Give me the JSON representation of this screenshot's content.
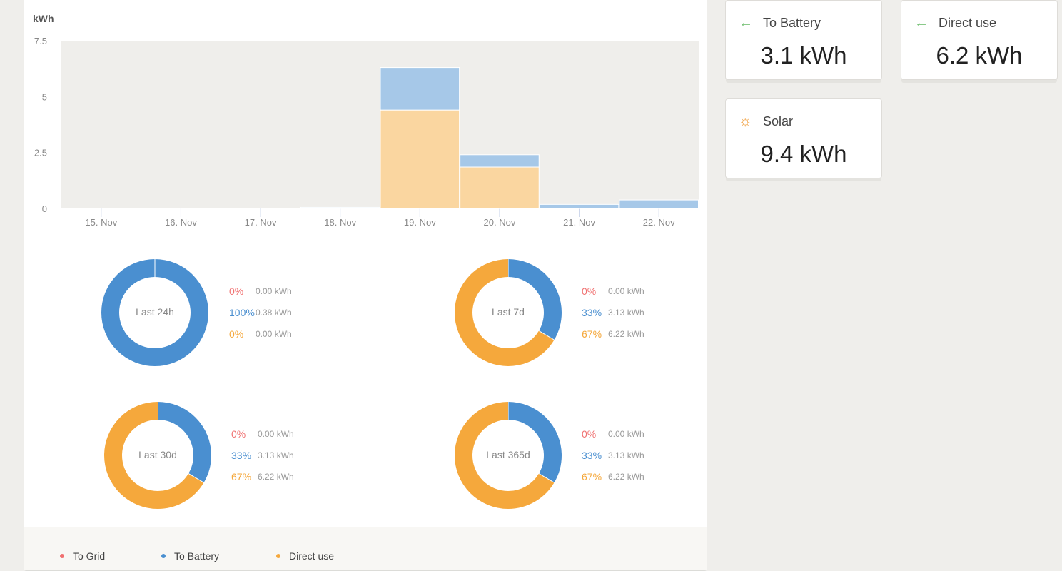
{
  "chart_data": {
    "type": "bar",
    "stacked": true,
    "ylabel": "kWh",
    "ylim": [
      0,
      7.5
    ],
    "yticks": [
      "0",
      "2.5",
      "5",
      "7.5"
    ],
    "ytick_values": [
      0,
      2.5,
      5,
      7.5
    ],
    "categories": [
      "15. Nov",
      "16. Nov",
      "17. Nov",
      "18. Nov",
      "19. Nov",
      "20. Nov",
      "21. Nov",
      "22. Nov"
    ],
    "series": [
      {
        "name": "Direct use",
        "color": "#fad6a0",
        "values": [
          0,
          0,
          0,
          0,
          4.4,
          1.85,
          0,
          0
        ]
      },
      {
        "name": "To Battery",
        "color": "#a6c8e8",
        "values": [
          0,
          0,
          0,
          0.05,
          1.9,
          0.55,
          0.18,
          0.38
        ]
      }
    ]
  },
  "donuts": [
    {
      "label": "Last 24h",
      "rows": [
        {
          "pct": "0%",
          "kwh": "0.00 kWh"
        },
        {
          "pct": "100%",
          "kwh": "0.38 kWh"
        },
        {
          "pct": "0%",
          "kwh": "0.00 kWh"
        }
      ],
      "fractions": [
        0,
        1,
        0
      ]
    },
    {
      "label": "Last 7d",
      "rows": [
        {
          "pct": "0%",
          "kwh": "0.00 kWh"
        },
        {
          "pct": "33%",
          "kwh": "3.13 kWh"
        },
        {
          "pct": "67%",
          "kwh": "6.22 kWh"
        }
      ],
      "fractions": [
        0,
        0.335,
        0.665
      ]
    },
    {
      "label": "Last 30d",
      "rows": [
        {
          "pct": "0%",
          "kwh": "0.00 kWh"
        },
        {
          "pct": "33%",
          "kwh": "3.13 kWh"
        },
        {
          "pct": "67%",
          "kwh": "6.22 kWh"
        }
      ],
      "fractions": [
        0,
        0.335,
        0.665
      ]
    },
    {
      "label": "Last 365d",
      "rows": [
        {
          "pct": "0%",
          "kwh": "0.00 kWh"
        },
        {
          "pct": "33%",
          "kwh": "3.13 kWh"
        },
        {
          "pct": "67%",
          "kwh": "6.22 kWh"
        }
      ],
      "fractions": [
        0,
        0.335,
        0.665
      ]
    }
  ],
  "colors": {
    "grid": "#f07070",
    "battery": "#4a8fd0",
    "direct": "#f5a83c",
    "plot_bg": "#efeeeb"
  },
  "legend": [
    {
      "label": "To Grid"
    },
    {
      "label": "To Battery"
    },
    {
      "label": "Direct use"
    }
  ],
  "cards": [
    {
      "title": "To Battery",
      "value": "3.1 kWh",
      "icon": "arrow-left-icon"
    },
    {
      "title": "Direct use",
      "value": "6.2 kWh",
      "icon": "arrow-left-icon"
    },
    {
      "title": "Solar",
      "value": "9.4 kWh",
      "icon": "sun-icon"
    }
  ]
}
